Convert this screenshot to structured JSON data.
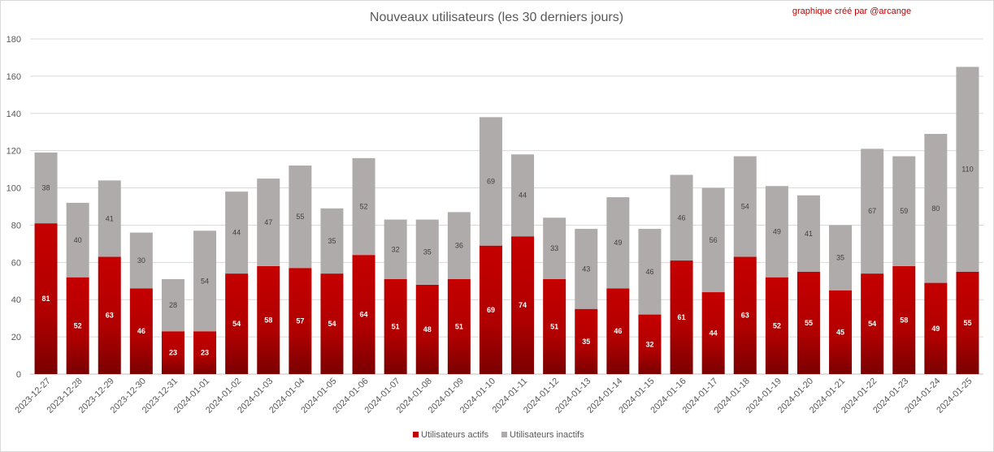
{
  "chart_data": {
    "type": "bar",
    "stacked": true,
    "title": "Nouveaux utilisateurs  (les 30 derniers  jours)",
    "credit": "graphique créé par @arcange",
    "ylim": [
      0,
      180
    ],
    "yticks": [
      0,
      20,
      40,
      60,
      80,
      100,
      120,
      140,
      160,
      180
    ],
    "grid": true,
    "legend_position": "bottom",
    "categories": [
      "2023-12-27",
      "2023-12-28",
      "2023-12-29",
      "2023-12-30",
      "2023-12-31",
      "2024-01-01",
      "2024-01-02",
      "2024-01-03",
      "2024-01-04",
      "2024-01-05",
      "2024-01-06",
      "2024-01-07",
      "2024-01-08",
      "2024-01-09",
      "2024-01-10",
      "2024-01-11",
      "2024-01-12",
      "2024-01-13",
      "2024-01-14",
      "2024-01-15",
      "2024-01-16",
      "2024-01-17",
      "2024-01-18",
      "2024-01-19",
      "2024-01-20",
      "2024-01-21",
      "2024-01-22",
      "2024-01-23",
      "2024-01-24",
      "2024-01-25"
    ],
    "series": [
      {
        "name": "Utilisateurs actifs",
        "color": "#c00000",
        "values": [
          81,
          52,
          63,
          46,
          23,
          23,
          54,
          58,
          57,
          54,
          64,
          51,
          48,
          51,
          69,
          74,
          51,
          35,
          46,
          32,
          61,
          44,
          63,
          52,
          55,
          45,
          54,
          58,
          49,
          55
        ]
      },
      {
        "name": "Utilisateurs inactifs",
        "color": "#b0abab",
        "values": [
          38,
          40,
          41,
          30,
          28,
          54,
          44,
          47,
          55,
          35,
          52,
          32,
          35,
          36,
          69,
          44,
          33,
          43,
          49,
          46,
          46,
          56,
          54,
          49,
          41,
          35,
          67,
          59,
          80,
          110
        ]
      }
    ]
  }
}
